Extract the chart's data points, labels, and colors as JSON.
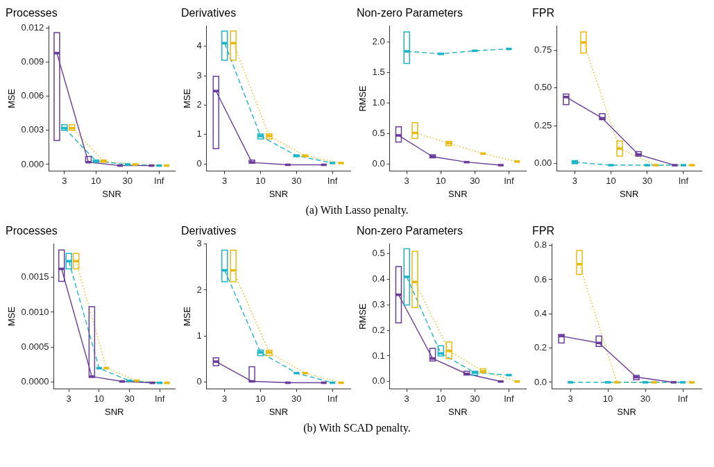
{
  "chart_data": [
    {
      "type": "box",
      "title": "Processes",
      "xlabel": "SNR",
      "ylabel": "MSE",
      "categories": [
        "3",
        "10",
        "30",
        "Inf"
      ],
      "ylim": [
        -0.0006,
        0.0122
      ],
      "yticks": [
        {
          "value": 0,
          "label": "0.000"
        },
        0.003,
        0.006,
        0.009,
        0.012
      ],
      "annotations": [
        "(a) With Lasso penalty."
      ],
      "series": [
        {
          "type": "box",
          "color": "#6a3d9a",
          "boxes": [
            {
              "low": 0.0021,
              "q1": 0.0021,
              "median": 0.0098,
              "q3": 0.0116,
              "high": 0.0116
            },
            {
              "low": 0.0002,
              "q1": 0.0002,
              "median": 0.0002,
              "q3": 0.0007,
              "high": 0.0007
            },
            {
              "low": -0.0001,
              "q1": -0.0001,
              "median": -0.0001,
              "q3": -0.0001,
              "high": -0.0001
            },
            {
              "low": -0.0001,
              "q1": -0.0001,
              "median": -0.0001,
              "q3": -0.0001,
              "high": -0.0001
            }
          ]
        },
        {
          "type": "box",
          "color": "#1cb5c7",
          "boxes": [
            {
              "low": 0.003,
              "q1": 0.003,
              "median": 0.0032,
              "q3": 0.0035,
              "high": 0.0035
            },
            {
              "low": 0.0002,
              "q1": 0.0002,
              "median": 0.0003,
              "q3": 0.0004,
              "high": 0.0004
            },
            {
              "low": 0,
              "q1": 0,
              "median": 0,
              "q3": 0,
              "high": 0
            },
            {
              "low": -0.0001,
              "q1": -0.0001,
              "median": -0.0001,
              "q3": -0.0001,
              "high": -0.0001
            }
          ]
        },
        {
          "type": "box",
          "color": "#e8b90f",
          "boxes": [
            {
              "low": 0.003,
              "q1": 0.003,
              "median": 0.0032,
              "q3": 0.0035,
              "high": 0.0035
            },
            {
              "low": 0.0002,
              "q1": 0.0002,
              "median": 0.0003,
              "q3": 0.0004,
              "high": 0.0004
            },
            {
              "low": 0,
              "q1": 0,
              "median": 0,
              "q3": 0,
              "high": 0
            },
            {
              "low": -0.0001,
              "q1": -0.0001,
              "median": -0.0001,
              "q3": -0.0001,
              "high": -0.0001
            }
          ]
        },
        {
          "type": "line",
          "color": "#6a3d9a",
          "line_style": "solid",
          "values": [
            0.0098,
            0.0002,
            -0.0001,
            -0.0001
          ]
        },
        {
          "type": "line",
          "color": "#1cb5c7",
          "line_style": "dashed",
          "values": [
            0.0032,
            0.0003,
            0,
            -0.0001
          ]
        },
        {
          "type": "line",
          "color": "#e8b90f",
          "line_style": "dotted",
          "values": [
            0.0032,
            0.0003,
            0,
            -0.0001
          ]
        }
      ]
    },
    {
      "type": "box",
      "title": "Derivatives",
      "xlabel": "SNR",
      "ylabel": "MSE",
      "categories": [
        "3",
        "10",
        "30",
        "Inf"
      ],
      "ylim": [
        -0.25,
        4.7
      ],
      "yticks": [
        0,
        1,
        2,
        3,
        4
      ],
      "series": [
        {
          "type": "box",
          "color": "#6a3d9a",
          "boxes": [
            {
              "low": 0.52,
              "q1": 0.52,
              "median": 2.48,
              "q3": 2.98,
              "high": 2.98
            },
            {
              "low": 0.02,
              "q1": 0.02,
              "median": 0.05,
              "q3": 0.13,
              "high": 0.13
            },
            {
              "low": -0.03,
              "q1": -0.03,
              "median": -0.03,
              "q3": -0.03,
              "high": -0.03
            },
            {
              "low": -0.03,
              "q1": -0.03,
              "median": -0.03,
              "q3": -0.03,
              "high": -0.03
            }
          ]
        },
        {
          "type": "box",
          "color": "#1cb5c7",
          "boxes": [
            {
              "low": 3.53,
              "q1": 3.53,
              "median": 4.11,
              "q3": 4.52,
              "high": 4.52
            },
            {
              "low": 0.85,
              "q1": 0.85,
              "median": 0.95,
              "q3": 1.02,
              "high": 1.02
            },
            {
              "low": 0.25,
              "q1": 0.25,
              "median": 0.28,
              "q3": 0.3,
              "high": 0.3
            },
            {
              "low": 0.03,
              "q1": 0.03,
              "median": 0.03,
              "q3": 0.03,
              "high": 0.03
            }
          ]
        },
        {
          "type": "box",
          "color": "#e8b90f",
          "boxes": [
            {
              "low": 3.53,
              "q1": 3.53,
              "median": 4.11,
              "q3": 4.52,
              "high": 4.52
            },
            {
              "low": 0.85,
              "q1": 0.85,
              "median": 0.95,
              "q3": 1.02,
              "high": 1.02
            },
            {
              "low": 0.25,
              "q1": 0.25,
              "median": 0.28,
              "q3": 0.3,
              "high": 0.3
            },
            {
              "low": 0.03,
              "q1": 0.03,
              "median": 0.03,
              "q3": 0.03,
              "high": 0.03
            }
          ]
        },
        {
          "type": "line",
          "color": "#6a3d9a",
          "line_style": "solid",
          "values": [
            2.48,
            0.05,
            -0.03,
            -0.03
          ]
        },
        {
          "type": "line",
          "color": "#1cb5c7",
          "line_style": "dashed",
          "values": [
            4.11,
            0.95,
            0.28,
            0.03
          ]
        },
        {
          "type": "line",
          "color": "#e8b90f",
          "line_style": "dotted",
          "values": [
            4.11,
            0.95,
            0.28,
            0.03
          ]
        }
      ]
    },
    {
      "type": "box",
      "title": "Non-zero Parameters",
      "xlabel": "SNR",
      "ylabel": "RMSE",
      "categories": [
        "3",
        "10",
        "30",
        "Inf"
      ],
      "ylim": [
        -0.12,
        2.27
      ],
      "yticks": [
        {
          "value": 0,
          "label": "0.0"
        },
        0.5,
        {
          "value": 1,
          "label": "1.0"
        },
        1.5,
        {
          "value": 2,
          "label": "2.0"
        }
      ],
      "series": [
        {
          "type": "box",
          "color": "#6a3d9a",
          "boxes": [
            {
              "low": 0.36,
              "q1": 0.36,
              "median": 0.47,
              "q3": 0.61,
              "high": 0.61
            },
            {
              "low": 0.1,
              "q1": 0.1,
              "median": 0.12,
              "q3": 0.15,
              "high": 0.15
            },
            {
              "low": 0.03,
              "q1": 0.03,
              "median": 0.03,
              "q3": 0.03,
              "high": 0.03
            },
            {
              "low": -0.02,
              "q1": -0.02,
              "median": -0.02,
              "q3": -0.02,
              "high": -0.02
            }
          ]
        },
        {
          "type": "box",
          "color": "#1cb5c7",
          "boxes": [
            {
              "low": 1.65,
              "q1": 1.65,
              "median": 1.85,
              "q3": 2.17,
              "high": 2.17
            },
            {
              "low": 1.8,
              "q1": 1.8,
              "median": 1.81,
              "q3": 1.82,
              "high": 1.82
            },
            {
              "low": 1.86,
              "q1": 1.86,
              "median": 1.86,
              "q3": 1.86,
              "high": 1.86
            },
            {
              "low": 1.89,
              "q1": 1.89,
              "median": 1.89,
              "q3": 1.89,
              "high": 1.89
            }
          ]
        },
        {
          "type": "box",
          "color": "#e8b90f",
          "boxes": [
            {
              "low": 0.42,
              "q1": 0.42,
              "median": 0.51,
              "q3": 0.68,
              "high": 0.68
            },
            {
              "low": 0.3,
              "q1": 0.3,
              "median": 0.34,
              "q3": 0.37,
              "high": 0.37
            },
            {
              "low": 0.17,
              "q1": 0.17,
              "median": 0.17,
              "q3": 0.17,
              "high": 0.17
            },
            {
              "low": 0.04,
              "q1": 0.04,
              "median": 0.04,
              "q3": 0.04,
              "high": 0.04
            }
          ]
        },
        {
          "type": "line",
          "color": "#6a3d9a",
          "line_style": "solid",
          "values": [
            0.47,
            0.12,
            0.03,
            -0.02
          ]
        },
        {
          "type": "line",
          "color": "#1cb5c7",
          "line_style": "dashed",
          "values": [
            1.85,
            1.81,
            1.86,
            1.89
          ]
        },
        {
          "type": "line",
          "color": "#e8b90f",
          "line_style": "dotted",
          "values": [
            0.51,
            0.34,
            0.17,
            0.04
          ]
        }
      ]
    },
    {
      "type": "box",
      "title": "FPR",
      "xlabel": "SNR",
      "categories": [
        "3",
        "10",
        "30",
        "Inf"
      ],
      "ylim": [
        -0.05,
        0.91
      ],
      "yticks": [
        {
          "value": 0,
          "label": "0.00"
        },
        0.25,
        {
          "value": 0.5,
          "label": "0.50"
        },
        0.75
      ],
      "series": [
        {
          "type": "box",
          "color": "#6a3d9a",
          "boxes": [
            {
              "low": 0.39,
              "q1": 0.39,
              "median": 0.44,
              "q3": 0.46,
              "high": 0.46
            },
            {
              "low": 0.29,
              "q1": 0.29,
              "median": 0.3,
              "q3": 0.33,
              "high": 0.33
            },
            {
              "low": 0.05,
              "q1": 0.05,
              "median": 0.06,
              "q3": 0.08,
              "high": 0.08
            },
            {
              "low": -0.01,
              "q1": -0.01,
              "median": -0.01,
              "q3": -0.01,
              "high": -0.01
            }
          ]
        },
        {
          "type": "box",
          "color": "#1cb5c7",
          "boxes": [
            {
              "low": 0,
              "q1": 0,
              "median": 0.01,
              "q3": 0.02,
              "high": 0.02
            },
            {
              "low": -0.01,
              "q1": -0.01,
              "median": -0.01,
              "q3": -0.01,
              "high": -0.01
            },
            {
              "low": -0.01,
              "q1": -0.01,
              "median": -0.01,
              "q3": -0.01,
              "high": -0.01
            },
            {
              "low": -0.01,
              "q1": -0.01,
              "median": -0.01,
              "q3": -0.01,
              "high": -0.01
            }
          ]
        },
        {
          "type": "box",
          "color": "#e8b90f",
          "boxes": [
            {
              "low": 0.73,
              "q1": 0.73,
              "median": 0.8,
              "q3": 0.87,
              "high": 0.87
            },
            {
              "low": 0.05,
              "q1": 0.05,
              "median": 0.1,
              "q3": 0.15,
              "high": 0.15
            },
            {
              "low": -0.01,
              "q1": -0.01,
              "median": -0.01,
              "q3": -0.01,
              "high": -0.01
            },
            {
              "low": -0.01,
              "q1": -0.01,
              "median": -0.01,
              "q3": -0.01,
              "high": -0.01
            }
          ]
        },
        {
          "type": "line",
          "color": "#6a3d9a",
          "line_style": "solid",
          "values": [
            0.44,
            0.3,
            0.06,
            -0.01
          ]
        },
        {
          "type": "line",
          "color": "#1cb5c7",
          "line_style": "dashed",
          "values": [
            0.01,
            -0.01,
            -0.01,
            -0.01
          ]
        },
        {
          "type": "line",
          "color": "#e8b90f",
          "line_style": "dotted",
          "values": [
            0.8,
            0.1,
            -0.01,
            -0.01
          ]
        }
      ]
    },
    {
      "type": "box",
      "title": "Processes",
      "xlabel": "SNR",
      "ylabel": "MSE",
      "categories": [
        "3",
        "10",
        "30",
        "Inf"
      ],
      "ylim": [
        -0.0001,
        0.00198
      ],
      "yticks": [
        {
          "value": 0,
          "label": "0.0000"
        },
        0.0005,
        {
          "value": 0.001,
          "label": "0.0010"
        },
        0.0015
      ],
      "annotations": [
        "(b) With SCAD penalty."
      ],
      "series": [
        {
          "type": "box",
          "color": "#6a3d9a",
          "boxes": [
            {
              "low": 0.00144,
              "q1": 0.00144,
              "median": 0.00162,
              "q3": 0.00189,
              "high": 0.00189
            },
            {
              "low": 7e-05,
              "q1": 7e-05,
              "median": 8e-05,
              "q3": 0.00108,
              "high": 0.00108
            },
            {
              "low": 1e-05,
              "q1": 1e-05,
              "median": 1e-05,
              "q3": 1e-05,
              "high": 1e-05
            },
            {
              "low": -1e-05,
              "q1": -1e-05,
              "median": -1e-05,
              "q3": -1e-05,
              "high": -1e-05
            }
          ]
        },
        {
          "type": "box",
          "color": "#1cb5c7",
          "boxes": [
            {
              "low": 0.00162,
              "q1": 0.00162,
              "median": 0.00173,
              "q3": 0.00184,
              "high": 0.00184
            },
            {
              "low": 0.0002,
              "q1": 0.0002,
              "median": 0.0002,
              "q3": 0.0002,
              "high": 0.0002
            },
            {
              "low": 2e-05,
              "q1": 2e-05,
              "median": 2e-05,
              "q3": 2e-05,
              "high": 2e-05
            },
            {
              "low": -1e-05,
              "q1": -1e-05,
              "median": -1e-05,
              "q3": -1e-05,
              "high": -1e-05
            }
          ]
        },
        {
          "type": "box",
          "color": "#e8b90f",
          "boxes": [
            {
              "low": 0.00162,
              "q1": 0.00162,
              "median": 0.00173,
              "q3": 0.00184,
              "high": 0.00184
            },
            {
              "low": 0.0002,
              "q1": 0.0002,
              "median": 0.0002,
              "q3": 0.0002,
              "high": 0.0002
            },
            {
              "low": 2e-05,
              "q1": 2e-05,
              "median": 2e-05,
              "q3": 2e-05,
              "high": 2e-05
            },
            {
              "low": -1e-05,
              "q1": -1e-05,
              "median": -1e-05,
              "q3": -1e-05,
              "high": -1e-05
            }
          ]
        },
        {
          "type": "line",
          "color": "#6a3d9a",
          "line_style": "solid",
          "values": [
            0.00162,
            8e-05,
            1e-05,
            -1e-05
          ]
        },
        {
          "type": "line",
          "color": "#1cb5c7",
          "line_style": "dashed",
          "values": [
            0.00173,
            0.0002,
            2e-05,
            -1e-05
          ]
        },
        {
          "type": "line",
          "color": "#e8b90f",
          "line_style": "dotted",
          "values": [
            0.00173,
            0.0002,
            2e-05,
            -1e-05
          ]
        }
      ]
    },
    {
      "type": "box",
      "title": "Derivatives",
      "xlabel": "SNR",
      "ylabel": "MSE",
      "categories": [
        "3",
        "10",
        "30",
        "Inf"
      ],
      "ylim": [
        -0.16,
        3.01
      ],
      "yticks": [
        0,
        1,
        2,
        3
      ],
      "series": [
        {
          "type": "box",
          "color": "#6a3d9a",
          "boxes": [
            {
              "low": 0.35,
              "q1": 0.35,
              "median": 0.44,
              "q3": 0.52,
              "high": 0.52
            },
            {
              "low": 0,
              "q1": 0,
              "median": 0.01,
              "q3": 0.33,
              "high": 0.33
            },
            {
              "low": -0.02,
              "q1": -0.02,
              "median": -0.02,
              "q3": -0.02,
              "high": -0.02
            },
            {
              "low": -0.02,
              "q1": -0.02,
              "median": -0.02,
              "q3": -0.02,
              "high": -0.02
            }
          ]
        },
        {
          "type": "box",
          "color": "#1cb5c7",
          "boxes": [
            {
              "low": 2.18,
              "q1": 2.18,
              "median": 2.43,
              "q3": 2.87,
              "high": 2.87
            },
            {
              "low": 0.57,
              "q1": 0.57,
              "median": 0.64,
              "q3": 0.69,
              "high": 0.69
            },
            {
              "low": 0.19,
              "q1": 0.19,
              "median": 0.19,
              "q3": 0.19,
              "high": 0.19
            },
            {
              "low": -0.02,
              "q1": -0.02,
              "median": -0.02,
              "q3": -0.02,
              "high": -0.02
            }
          ]
        },
        {
          "type": "box",
          "color": "#e8b90f",
          "boxes": [
            {
              "low": 2.18,
              "q1": 2.18,
              "median": 2.43,
              "q3": 2.87,
              "high": 2.87
            },
            {
              "low": 0.57,
              "q1": 0.57,
              "median": 0.64,
              "q3": 0.69,
              "high": 0.69
            },
            {
              "low": 0.19,
              "q1": 0.19,
              "median": 0.19,
              "q3": 0.19,
              "high": 0.19
            },
            {
              "low": -0.02,
              "q1": -0.02,
              "median": -0.02,
              "q3": -0.02,
              "high": -0.02
            }
          ]
        },
        {
          "type": "line",
          "color": "#6a3d9a",
          "line_style": "solid",
          "values": [
            0.44,
            0.01,
            -0.02,
            -0.02
          ]
        },
        {
          "type": "line",
          "color": "#1cb5c7",
          "line_style": "dashed",
          "values": [
            2.43,
            0.64,
            0.19,
            -0.02
          ]
        },
        {
          "type": "line",
          "color": "#e8b90f",
          "line_style": "dotted",
          "values": [
            2.43,
            0.64,
            0.19,
            -0.02
          ]
        }
      ]
    },
    {
      "type": "box",
      "title": "Non-zero Parameters",
      "xlabel": "SNR",
      "ylabel": "RMSE",
      "categories": [
        "3",
        "10",
        "30",
        "Inf"
      ],
      "ylim": [
        -0.03,
        0.54
      ],
      "yticks": [
        {
          "value": 0,
          "label": "0.0"
        },
        0.1,
        0.2,
        0.3,
        0.4,
        0.5
      ],
      "series": [
        {
          "type": "box",
          "color": "#6a3d9a",
          "boxes": [
            {
              "low": 0.23,
              "q1": 0.23,
              "median": 0.34,
              "q3": 0.45,
              "high": 0.45
            },
            {
              "low": 0.08,
              "q1": 0.08,
              "median": 0.09,
              "q3": 0.13,
              "high": 0.13
            },
            {
              "low": 0.025,
              "q1": 0.025,
              "median": 0.03,
              "q3": 0.04,
              "high": 0.04
            },
            {
              "low": 0,
              "q1": 0,
              "median": 0,
              "q3": 0,
              "high": 0
            }
          ]
        },
        {
          "type": "box",
          "color": "#1cb5c7",
          "boxes": [
            {
              "low": 0.3,
              "q1": 0.3,
              "median": 0.41,
              "q3": 0.52,
              "high": 0.52
            },
            {
              "low": 0.1,
              "q1": 0.1,
              "median": 0.11,
              "q3": 0.14,
              "high": 0.14
            },
            {
              "low": 0.025,
              "q1": 0.025,
              "median": 0.035,
              "q3": 0.04,
              "high": 0.04
            },
            {
              "low": 0.025,
              "q1": 0.025,
              "median": 0.025,
              "q3": 0.025,
              "high": 0.025
            }
          ]
        },
        {
          "type": "box",
          "color": "#e8b90f",
          "boxes": [
            {
              "low": 0.29,
              "q1": 0.29,
              "median": 0.39,
              "q3": 0.51,
              "high": 0.51
            },
            {
              "low": 0.09,
              "q1": 0.09,
              "median": 0.12,
              "q3": 0.155,
              "high": 0.155
            },
            {
              "low": 0.035,
              "q1": 0.035,
              "median": 0.04,
              "q3": 0.05,
              "high": 0.05
            },
            {
              "low": 0,
              "q1": 0,
              "median": 0,
              "q3": 0,
              "high": 0
            }
          ]
        },
        {
          "type": "line",
          "color": "#6a3d9a",
          "line_style": "solid",
          "values": [
            0.34,
            0.09,
            0.03,
            0
          ]
        },
        {
          "type": "line",
          "color": "#1cb5c7",
          "line_style": "dashed",
          "values": [
            0.41,
            0.11,
            0.035,
            0.025
          ]
        },
        {
          "type": "line",
          "color": "#e8b90f",
          "line_style": "dotted",
          "values": [
            0.39,
            0.12,
            0.04,
            0
          ]
        }
      ]
    },
    {
      "type": "box",
      "title": "FPR",
      "xlabel": "SNR",
      "categories": [
        "3",
        "10",
        "30",
        "Inf"
      ],
      "ylim": [
        -0.04,
        0.81
      ],
      "yticks": [
        {
          "value": 0,
          "label": "0.0"
        },
        0.2,
        0.4,
        0.6,
        0.8
      ],
      "series": [
        {
          "type": "box",
          "color": "#6a3d9a",
          "boxes": [
            {
              "low": 0.23,
              "q1": 0.23,
              "median": 0.27,
              "q3": 0.28,
              "high": 0.28
            },
            {
              "low": 0.21,
              "q1": 0.21,
              "median": 0.23,
              "q3": 0.27,
              "high": 0.27
            },
            {
              "low": 0.015,
              "q1": 0.015,
              "median": 0.03,
              "q3": 0.04,
              "high": 0.04
            },
            {
              "low": 0,
              "q1": 0,
              "median": 0,
              "q3": 0,
              "high": 0
            }
          ]
        },
        {
          "type": "box",
          "color": "#1cb5c7",
          "boxes": [
            {
              "low": 0,
              "q1": 0,
              "median": 0,
              "q3": 0,
              "high": 0
            },
            {
              "low": 0,
              "q1": 0,
              "median": 0,
              "q3": 0,
              "high": 0
            },
            {
              "low": 0,
              "q1": 0,
              "median": 0,
              "q3": 0,
              "high": 0
            },
            {
              "low": 0,
              "q1": 0,
              "median": 0,
              "q3": 0,
              "high": 0
            }
          ]
        },
        {
          "type": "box",
          "color": "#e8b90f",
          "boxes": [
            {
              "low": 0.63,
              "q1": 0.63,
              "median": 0.69,
              "q3": 0.77,
              "high": 0.77
            },
            {
              "low": 0,
              "q1": 0,
              "median": 0,
              "q3": 0,
              "high": 0
            },
            {
              "low": 0,
              "q1": 0,
              "median": 0,
              "q3": 0,
              "high": 0
            },
            {
              "low": 0,
              "q1": 0,
              "median": 0,
              "q3": 0,
              "high": 0
            }
          ]
        },
        {
          "type": "line",
          "color": "#6a3d9a",
          "line_style": "solid",
          "values": [
            0.27,
            0.23,
            0.03,
            0
          ]
        },
        {
          "type": "line",
          "color": "#1cb5c7",
          "line_style": "dashed",
          "values": [
            0,
            0,
            0,
            0
          ]
        },
        {
          "type": "line",
          "color": "#e8b90f",
          "line_style": "dotted",
          "values": [
            0.69,
            0,
            0,
            0
          ]
        }
      ]
    }
  ]
}
